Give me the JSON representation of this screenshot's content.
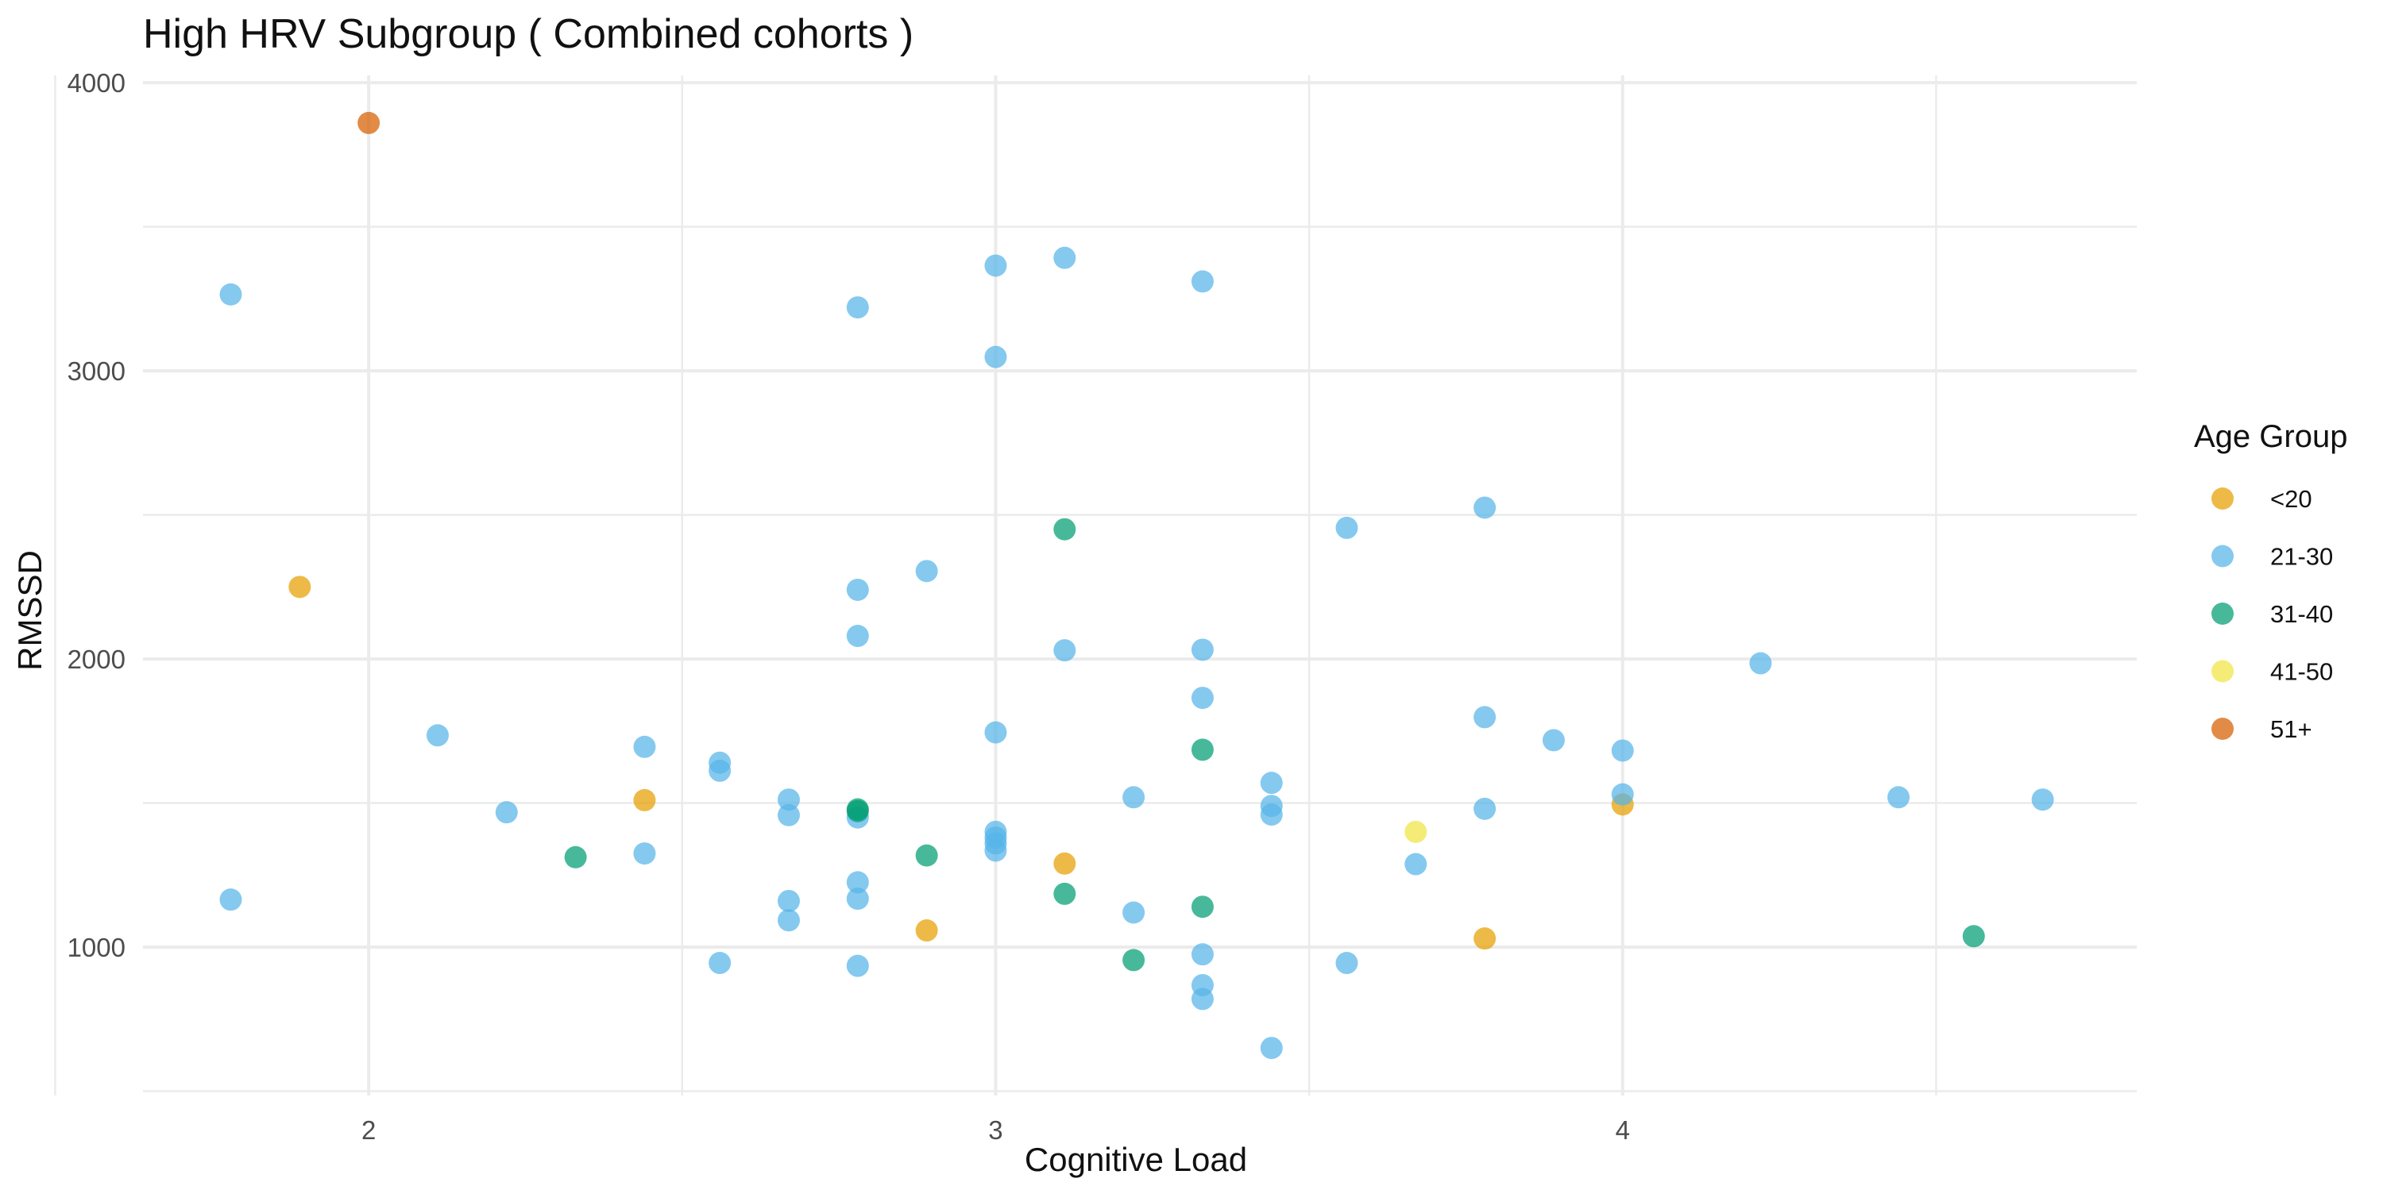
{
  "chart_data": {
    "type": "scatter",
    "title": "High HRV Subgroup ( Combined cohorts )",
    "xlabel": "Cognitive Load",
    "ylabel": "RMSSD",
    "xlim": [
      1.64,
      4.82
    ],
    "ylim": [
      485,
      4025
    ],
    "x_ticks": [
      2,
      3,
      4
    ],
    "y_ticks": [
      1000,
      2000,
      3000,
      4000
    ],
    "x_minor": [
      1.5,
      2.5,
      3.5,
      4.5
    ],
    "y_minor": [
      500,
      1500,
      2500,
      3500
    ],
    "grid": true,
    "legend": {
      "title": "Age Group",
      "position": "right"
    },
    "series": [
      {
        "name": "<20",
        "color": "#E69F00",
        "points": [
          [
            1.89,
            2250
          ],
          [
            2.44,
            1510
          ],
          [
            2.89,
            1058
          ],
          [
            3.11,
            1290
          ],
          [
            3.78,
            1030
          ],
          [
            4.0,
            1495
          ]
        ]
      },
      {
        "name": "21-30",
        "color": "#56B4E9",
        "points": [
          [
            1.78,
            3265
          ],
          [
            1.78,
            1165
          ],
          [
            2.11,
            1735
          ],
          [
            2.22,
            1468
          ],
          [
            2.44,
            1695
          ],
          [
            2.44,
            1325
          ],
          [
            2.56,
            1640
          ],
          [
            2.56,
            1612
          ],
          [
            2.56,
            945
          ],
          [
            2.67,
            1512
          ],
          [
            2.67,
            1458
          ],
          [
            2.67,
            1160
          ],
          [
            2.67,
            1093
          ],
          [
            2.78,
            3220
          ],
          [
            2.78,
            2240
          ],
          [
            2.78,
            2080
          ],
          [
            2.78,
            1450
          ],
          [
            2.78,
            1225
          ],
          [
            2.78,
            1168
          ],
          [
            2.78,
            935
          ],
          [
            2.89,
            2305
          ],
          [
            3.0,
            3365
          ],
          [
            3.0,
            3048
          ],
          [
            3.0,
            1745
          ],
          [
            3.0,
            1400
          ],
          [
            3.0,
            1380
          ],
          [
            3.0,
            1360
          ],
          [
            3.0,
            1335
          ],
          [
            3.11,
            3392
          ],
          [
            3.11,
            2030
          ],
          [
            3.22,
            1520
          ],
          [
            3.22,
            1120
          ],
          [
            3.33,
            3310
          ],
          [
            3.33,
            2032
          ],
          [
            3.33,
            1865
          ],
          [
            3.33,
            975
          ],
          [
            3.33,
            868
          ],
          [
            3.33,
            820
          ],
          [
            3.44,
            1570
          ],
          [
            3.44,
            1490
          ],
          [
            3.44,
            1460
          ],
          [
            3.44,
            650
          ],
          [
            3.56,
            2455
          ],
          [
            3.56,
            945
          ],
          [
            3.67,
            1288
          ],
          [
            3.78,
            2525
          ],
          [
            3.78,
            1798
          ],
          [
            3.78,
            1480
          ],
          [
            3.89,
            1718
          ],
          [
            4.0,
            1682
          ],
          [
            4.0,
            1530
          ],
          [
            4.22,
            1985
          ],
          [
            4.44,
            1520
          ],
          [
            4.67,
            1512
          ]
        ]
      },
      {
        "name": "31-40",
        "color": "#009E73",
        "points": [
          [
            2.33,
            1312
          ],
          [
            2.78,
            1478
          ],
          [
            2.78,
            1472
          ],
          [
            2.89,
            1318
          ],
          [
            3.11,
            2450
          ],
          [
            3.11,
            1185
          ],
          [
            3.22,
            955
          ],
          [
            3.33,
            1685
          ],
          [
            3.33,
            1140
          ],
          [
            4.56,
            1038
          ]
        ]
      },
      {
        "name": "41-50",
        "color": "#F0E442",
        "points": [
          [
            3.67,
            1400
          ]
        ]
      },
      {
        "name": "51+",
        "color": "#D55E00",
        "points": [
          [
            2.0,
            3860
          ]
        ]
      }
    ]
  }
}
